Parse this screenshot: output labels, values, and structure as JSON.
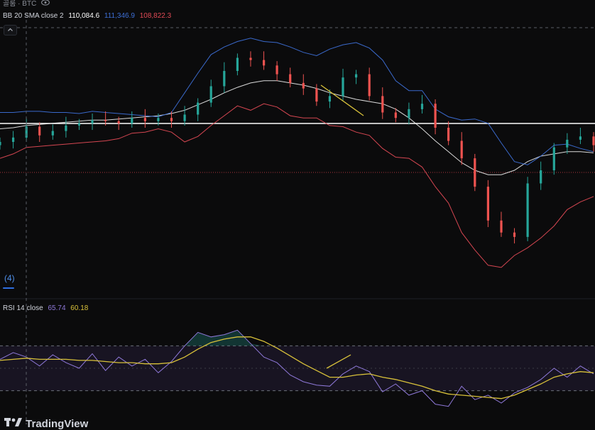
{
  "header": {
    "symbol_text": "골룸 · BTC",
    "eye_icon": "eye-icon"
  },
  "bb_legend": {
    "name": "BB 20 SMA close 2",
    "basis": "110,084.6",
    "upper": "111,346.9",
    "lower": "108,822.3",
    "basis_color": "#ffffff",
    "upper_color": "#3d6fd6",
    "lower_color": "#e04a55"
  },
  "rsi_legend": {
    "name": "RSI 14 close",
    "rsi": "65.74",
    "ma": "60.18",
    "rsi_color": "#8e78d8",
    "ma_color": "#d8c13a"
  },
  "badge": {
    "count": "(4)"
  },
  "watermark": {
    "text": "TradingView"
  },
  "colors": {
    "up": "#26a69a",
    "down": "#ef5350",
    "background": "#0b0b0c"
  },
  "chart_data": {
    "type": "line",
    "price_series": [
      {
        "name": "BB 20 SMA close 2 — Basis",
        "values": [
          5,
          6,
          8,
          9,
          10,
          11,
          12,
          13,
          13,
          14,
          15,
          16,
          17,
          19,
          22,
          27,
          32,
          38,
          43,
          47,
          49,
          49,
          47,
          45,
          42,
          38,
          35,
          32,
          30,
          28,
          23,
          15,
          5,
          -6,
          -16,
          -26,
          -33,
          -37,
          -37,
          -33,
          -25,
          -20,
          -18,
          -16,
          -16,
          -17
        ]
      },
      {
        "name": "BB 20 SMA close 2 — Upper",
        "values": [
          20,
          20,
          21,
          21,
          20,
          20,
          19,
          21,
          20,
          19,
          18,
          17,
          16,
          20,
          38,
          56,
          73,
          80,
          85,
          88,
          85,
          84,
          80,
          75,
          72,
          78,
          82,
          84,
          79,
          68,
          49,
          40,
          40,
          23,
          16,
          13,
          14,
          10,
          -8,
          -25,
          -28,
          -20,
          -10,
          -9,
          -13,
          -16
        ]
      },
      {
        "name": "BB 20 SMA close 2 — Lower",
        "values": [
          -22,
          -18,
          -12,
          -11,
          -10,
          -9,
          -8,
          -7,
          -6,
          -4,
          1,
          2,
          5,
          2,
          -7,
          -2,
          8,
          17,
          26,
          22,
          28,
          25,
          17,
          15,
          15,
          8,
          7,
          2,
          -1,
          -13,
          -21,
          -22,
          -30,
          -48,
          -63,
          -90,
          -106,
          -120,
          -122,
          -111,
          -104,
          -95,
          -84,
          -69,
          -62,
          -57
        ]
      },
      {
        "name": "Close",
        "values": [
          -7,
          -3,
          7,
          -1,
          3,
          8,
          10,
          13,
          12,
          10,
          15,
          12,
          15,
          12,
          18,
          29,
          44,
          58,
          70,
          68,
          63,
          55,
          47,
          42,
          30,
          35,
          52,
          55,
          35,
          20,
          15,
          23,
          28,
          6,
          -6,
          -22,
          -48,
          -79,
          -90,
          -94,
          -45,
          -33,
          -12,
          -5,
          -2,
          -10
        ]
      }
    ],
    "rsi_series": [
      {
        "name": "RSI 14 close",
        "values": [
          58,
          64,
          60,
          52,
          62,
          55,
          50,
          63,
          48,
          60,
          52,
          58,
          46,
          56,
          70,
          82,
          78,
          80,
          84,
          72,
          60,
          55,
          44,
          38,
          35,
          34,
          45,
          52,
          47,
          29,
          36,
          26,
          30,
          18,
          16,
          34,
          22,
          26,
          19,
          28,
          33,
          40,
          50,
          42,
          52,
          45
        ]
      },
      {
        "name": "RSI-based MA",
        "values": [
          57,
          58,
          59,
          58,
          58,
          58,
          57,
          57,
          56,
          55,
          55,
          54,
          54,
          55,
          60,
          67,
          73,
          76,
          78,
          78,
          74,
          68,
          61,
          54,
          48,
          42,
          42,
          44,
          45,
          42,
          40,
          37,
          34,
          30,
          27,
          26,
          25,
          24,
          23,
          26,
          31,
          36,
          42,
          45,
          47,
          46
        ]
      }
    ],
    "rsi_ylim": [
      0,
      100
    ],
    "rsi_levels": [
      70,
      30
    ],
    "grid": false
  }
}
